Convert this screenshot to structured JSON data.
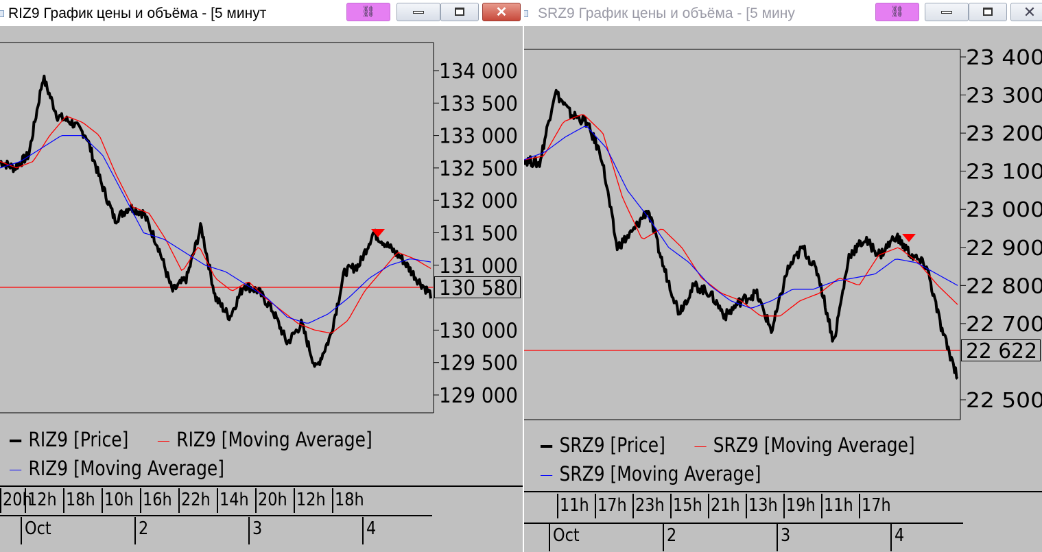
{
  "windows": [
    {
      "id": "riz9",
      "title": "RIZ9 График цены и объёма - [5 минут",
      "y_ticks": [
        "134 000",
        "133 500",
        "133 000",
        "132 500",
        "132 000",
        "131 500",
        "131 000",
        "130 000",
        "129 500",
        "129 000"
      ],
      "y_tick_values": [
        134000,
        133500,
        133000,
        132500,
        132000,
        131500,
        131000,
        130000,
        129500,
        129000
      ],
      "current_price": "130 580",
      "legend": {
        "price": "RIZ9 [Price]",
        "ma_red": "RIZ9 [Moving Average]",
        "ma_blue": "RIZ9 [Moving Average]"
      },
      "time_labels": [
        "20h",
        "12h",
        "18h",
        "10h",
        "16h",
        "22h",
        "14h",
        "20h",
        "12h",
        "18h"
      ],
      "date_labels": [
        "Oct",
        "2",
        "3",
        "4"
      ]
    },
    {
      "id": "srz9",
      "title": "SRZ9 График цены и объёма - [5 мину",
      "y_ticks": [
        "23 400",
        "23 300",
        "23 200",
        "23 100",
        "23 000",
        "22 900",
        "22 800",
        "22 700",
        "22 500"
      ],
      "y_tick_values": [
        23400,
        23300,
        23200,
        23100,
        23000,
        22900,
        22800,
        22700,
        22500
      ],
      "current_price": "22 622",
      "legend": {
        "price": "SRZ9 [Price]",
        "ma_red": "SRZ9 [Moving Average]",
        "ma_blue": "SRZ9 [Moving Average]"
      },
      "time_labels": [
        "11h",
        "17h",
        "23h",
        "15h",
        "21h",
        "13h",
        "19h",
        "11h",
        "17h"
      ],
      "date_labels": [
        "Oct",
        "2",
        "3",
        "4"
      ]
    }
  ],
  "colors": {
    "background": "#c0c0c0",
    "price": "#000000",
    "ma_fast": "#ff0000",
    "ma_slow": "#0000ff",
    "marker": "#ff0000",
    "link_button": "#e57ff2"
  },
  "chart_data": [
    {
      "type": "line",
      "title": "RIZ9 График цены и объёма - [5 минут",
      "ylim": [
        129000,
        134000
      ],
      "series": [
        {
          "name": "RIZ9 [Price]",
          "values": [
            132600,
            132500,
            132700,
            133900,
            133300,
            133200,
            133000,
            132300,
            131700,
            131900,
            131800,
            131300,
            130600,
            130800,
            131600,
            130500,
            130200,
            130700,
            130600,
            130300,
            129800,
            130100,
            129400,
            129900,
            130900,
            131000,
            131500,
            131300,
            131100,
            130800,
            130550
          ]
        },
        {
          "name": "RIZ9 [Moving Average]",
          "values": [
            132600,
            132500,
            132600,
            133000,
            133300,
            133200,
            133000,
            132400,
            131900,
            131800,
            131400,
            130900,
            131300,
            130800,
            130600,
            130750,
            130500,
            130300,
            130100,
            130000,
            129950,
            130150,
            130600,
            130900,
            131200,
            131100,
            130950
          ]
        },
        {
          "name": "RIZ9 [Moving Average]",
          "values": [
            132500,
            132600,
            132800,
            133000,
            133000,
            132700,
            132100,
            131500,
            131400,
            131200,
            131000,
            130900,
            130700,
            130500,
            130200,
            130100,
            130250,
            130500,
            130800,
            131000,
            131100,
            131050
          ]
        }
      ],
      "markers": [
        {
          "type": "sell-triangle",
          "y": 131450
        }
      ],
      "current_price": 130580
    },
    {
      "type": "line",
      "title": "SRZ9 График цены и объёма - [5 мину",
      "ylim": [
        22450,
        23400
      ],
      "series": [
        {
          "name": "SRZ9 [Price]",
          "values": [
            23130,
            23120,
            23310,
            23250,
            23230,
            23140,
            22900,
            22940,
            23000,
            22850,
            22730,
            22800,
            22780,
            22720,
            22760,
            22780,
            22680,
            22840,
            22900,
            22830,
            22650,
            22880,
            22920,
            22880,
            22930,
            22880,
            22850,
            22680,
            22560
          ]
        },
        {
          "name": "SRZ9 [Moving Average]",
          "values": [
            23130,
            23140,
            23230,
            23250,
            23200,
            23030,
            22920,
            22950,
            22900,
            22820,
            22780,
            22760,
            22720,
            22720,
            22760,
            22780,
            22820,
            22800,
            22880,
            22900,
            22860,
            22800,
            22750
          ]
        },
        {
          "name": "SRZ9 [Moving Average]",
          "values": [
            23130,
            23150,
            23190,
            23220,
            23160,
            23050,
            22980,
            22900,
            22860,
            22800,
            22760,
            22740,
            22760,
            22790,
            22790,
            22810,
            22820,
            22830,
            22870,
            22860,
            22830,
            22800
          ]
        }
      ],
      "markers": [
        {
          "type": "sell-triangle",
          "y": 22890
        }
      ],
      "current_price": 22622
    }
  ]
}
